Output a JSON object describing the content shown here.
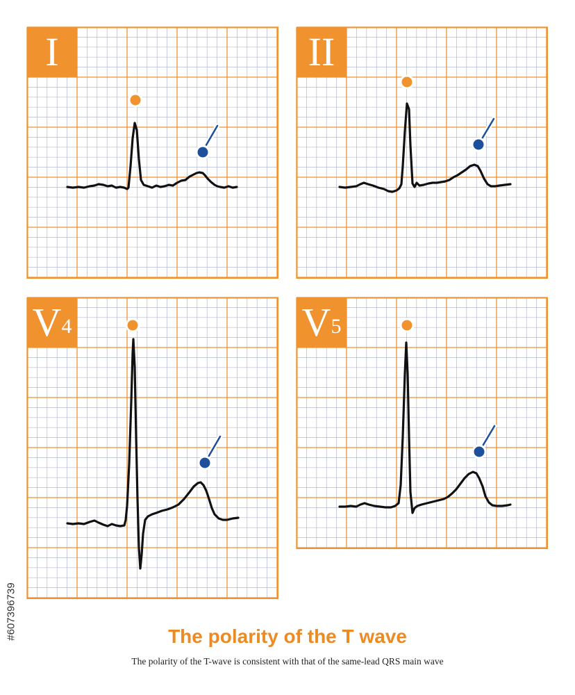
{
  "title": "The polarity of the T wave",
  "subtitle": "The polarity of the T-wave is consistent with that of the same-lead QRS main wave",
  "watermark_id": "#607396739",
  "colors": {
    "grid_major": "#f0922e",
    "grid_minor": "#b4b8d2",
    "label_bg": "#f0922e",
    "qrs_marker": "#f0922e",
    "t_marker": "#1d4f9c",
    "trace": "#111111",
    "title": "#ec8a24"
  },
  "panels": [
    {
      "id": "I",
      "label_main": "I",
      "label_sub": "",
      "qrs_marker_icon": "orange-dot",
      "t_marker_icon": "blue-pin"
    },
    {
      "id": "II",
      "label_main": "II",
      "label_sub": "",
      "qrs_marker_icon": "orange-dot",
      "t_marker_icon": "blue-pin"
    },
    {
      "id": "V4",
      "label_main": "V",
      "label_sub": "4",
      "qrs_marker_icon": "orange-dot",
      "t_marker_icon": "blue-pin"
    },
    {
      "id": "V5",
      "label_main": "V",
      "label_sub": "5",
      "qrs_marker_icon": "orange-dot",
      "t_marker_icon": "blue-pin"
    }
  ]
}
